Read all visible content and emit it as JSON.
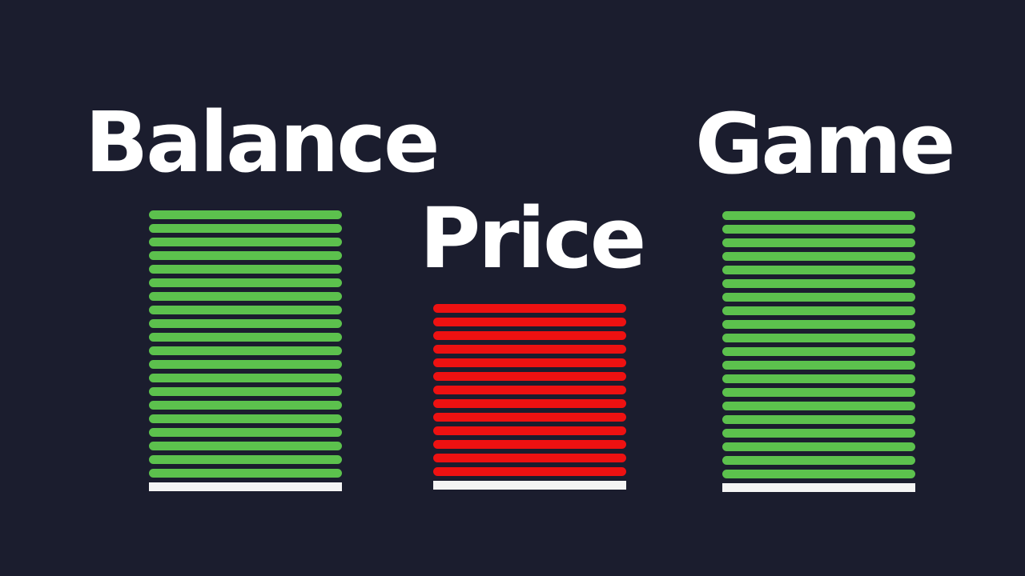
{
  "columns": [
    {
      "key": "balance",
      "label": "Balance",
      "color": "#5cc14d",
      "bars": 20
    },
    {
      "key": "price",
      "label": "Price",
      "color": "#ee1111",
      "bars": 13
    },
    {
      "key": "game",
      "label": "Game",
      "color": "#5cc14d",
      "bars": 20
    }
  ],
  "base_color": "#f4f4f4"
}
